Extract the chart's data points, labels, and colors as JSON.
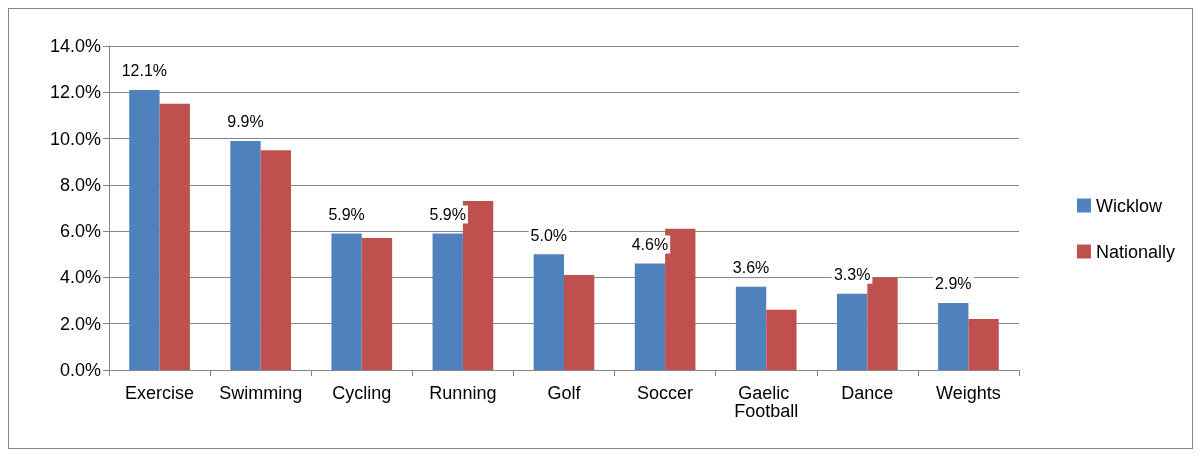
{
  "chart_data": {
    "type": "bar",
    "categories": [
      "Exercise",
      "Swimming",
      "Cycling",
      "Running",
      "Golf",
      "Soccer",
      "Gaelic Football",
      "Dance",
      "Weights"
    ],
    "series": [
      {
        "name": "Wicklow",
        "color": "#4f81bd",
        "values": [
          12.1,
          9.9,
          5.9,
          5.9,
          5.0,
          4.6,
          3.6,
          3.3,
          2.9
        ],
        "value_labels": [
          "12.1%",
          "9.9%",
          "5.9%",
          "5.9%",
          "5.0%",
          "4.6%",
          "3.6%",
          "3.3%",
          "2.9%"
        ]
      },
      {
        "name": "Nationally",
        "color": "#c0504d",
        "values": [
          11.5,
          9.5,
          5.7,
          7.3,
          4.1,
          6.1,
          2.6,
          4.0,
          2.2
        ]
      }
    ],
    "ylim": [
      0,
      14
    ],
    "yticks": [
      {
        "value": 0,
        "label": "0.0%"
      },
      {
        "value": 2,
        "label": "2.0%"
      },
      {
        "value": 4,
        "label": "4.0%"
      },
      {
        "value": 6,
        "label": "6.0%"
      },
      {
        "value": 8,
        "label": "8.0%"
      },
      {
        "value": 10,
        "label": "10.0%"
      },
      {
        "value": 12,
        "label": "12.0%"
      },
      {
        "value": 14,
        "label": "14.0%"
      }
    ],
    "grid": "y",
    "legend": "right"
  }
}
